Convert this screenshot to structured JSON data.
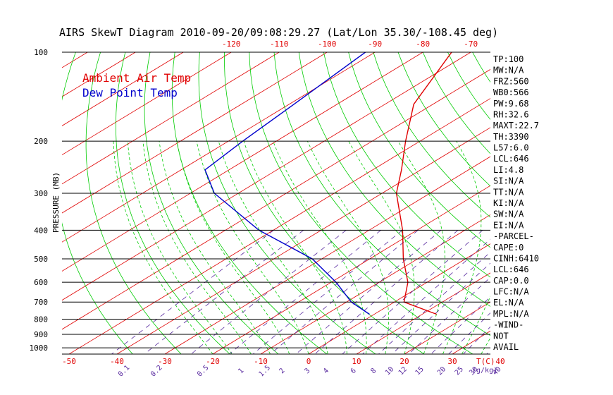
{
  "chart_data": {
    "type": "line",
    "title": "AIRS SkewT Diagram 2010-09-20/09:08:29.27 (Lat/Lon 35.30/-108.45 deg)",
    "ylabel": "PRESSURE (MB)",
    "xlabel": "T(C)",
    "mixing_ratio_label": "(g/kg)",
    "pressure_levels": [
      "100",
      "200",
      "300",
      "400",
      "500",
      "600",
      "700",
      "800",
      "900",
      "1000"
    ],
    "bottom_temp_ticks": [
      "-50",
      "-40",
      "-30",
      "-20",
      "-10",
      "0",
      "10",
      "20",
      "30",
      "40"
    ],
    "top_temp_ticks": [
      "-120",
      "-110",
      "-100",
      "-90",
      "-80",
      "-70",
      "-60",
      "-50",
      "-40"
    ],
    "mixing_ratio_ticks": [
      "0.1",
      "0.2",
      "0.5",
      "1",
      "1.5",
      "2",
      "3",
      "4",
      "6",
      "8",
      "10",
      "12",
      "15",
      "20",
      "25",
      "30",
      "40"
    ],
    "series": [
      {
        "name": "Ambient Air Temp",
        "color": "#e00000",
        "points": [
          {
            "p": 100,
            "t": -74
          },
          {
            "p": 150,
            "t": -64
          },
          {
            "p": 200,
            "t": -53
          },
          {
            "p": 250,
            "t": -44
          },
          {
            "p": 300,
            "t": -37
          },
          {
            "p": 400,
            "t": -23
          },
          {
            "p": 500,
            "t": -13
          },
          {
            "p": 600,
            "t": -4
          },
          {
            "p": 700,
            "t": 2
          },
          {
            "p": 770,
            "t": 13
          }
        ]
      },
      {
        "name": "Dew Point Temp",
        "color": "#0000cc",
        "points": [
          {
            "p": 100,
            "t": -92
          },
          {
            "p": 150,
            "t": -89
          },
          {
            "p": 200,
            "t": -87
          },
          {
            "p": 250,
            "t": -85
          },
          {
            "p": 300,
            "t": -75
          },
          {
            "p": 400,
            "t": -53
          },
          {
            "p": 500,
            "t": -32
          },
          {
            "p": 600,
            "t": -19
          },
          {
            "p": 700,
            "t": -9
          },
          {
            "p": 770,
            "t": -1
          }
        ]
      }
    ],
    "side_labels": [
      "TP:100",
      "MW:N/A",
      "FRZ:560",
      "WB0:566",
      "PW:9.68",
      "RH:32.6",
      "MAXT:22.7",
      "TH:3390",
      "L57:6.0",
      "LCL:646",
      "LI:4.8",
      "SI:N/A",
      "TT:N/A",
      "KI:N/A",
      "SW:N/A",
      "EI:N/A",
      "-PARCEL-",
      "CAPE:0",
      "CINH:6410",
      "LCL:646",
      "CAP:0.0",
      "LFC:N/A",
      "EL:N/A",
      "MPL:N/A",
      "-WIND-",
      "NOT",
      "AVAIL"
    ],
    "colors": {
      "temperature": "#e00000",
      "dewpoint": "#0000cc",
      "isotherm": "#e00000",
      "dry_adiabat": "#00cc00",
      "moist_adiabat": "#00cc00",
      "mixing_ratio": "#5a2ca0"
    },
    "grid": true
  }
}
